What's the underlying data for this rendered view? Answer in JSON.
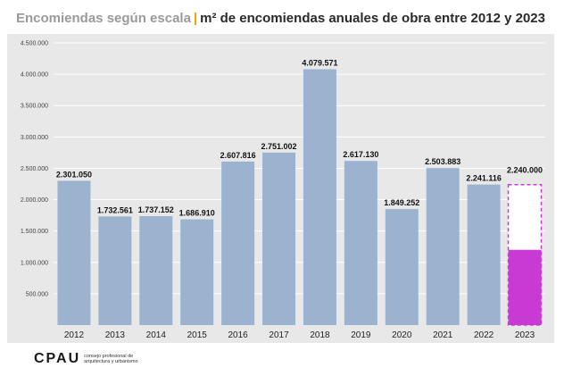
{
  "header": {
    "title_light": "Encomiendas según escala",
    "separator": "|",
    "title_dark": "m² de encomiendas anuales de obra entre 2012 y 2023"
  },
  "footer": {
    "logo_text": "CPAU",
    "org_line1": "consejo profesional de",
    "org_line2": "arquitectura y urbanismo"
  },
  "colors": {
    "bar": "#9bb3cf",
    "highlight": "#c93ad4",
    "plot_bg": "#e8e8e8",
    "grid": "#ffffff"
  },
  "chart_data": {
    "type": "bar",
    "title": "m² de encomiendas anuales de obra entre 2012 y 2023",
    "xlabel": "",
    "ylabel": "",
    "categories": [
      "2012",
      "2013",
      "2014",
      "2015",
      "2016",
      "2017",
      "2018",
      "2019",
      "2020",
      "2021",
      "2022",
      "2023"
    ],
    "values": [
      2301050,
      1732561,
      1737152,
      1686910,
      2607816,
      2751002,
      4079571,
      2617130,
      1849252,
      2503883,
      2241116,
      2240000
    ],
    "value_labels": [
      "2.301.050",
      "1.732.561",
      "1.737.152",
      "1.686.910",
      "2.607.816",
      "2.751.002",
      "4.079.571",
      "2.617.130",
      "1.849.252",
      "2.503.883",
      "2.241.116",
      "2.240.000"
    ],
    "partial_2023_actual": 1200000,
    "partial_note_style": "2023 shown as partial solid bar with dashed projected outline",
    "ylim": [
      0,
      4500000
    ],
    "yticks": [
      500000,
      1000000,
      1500000,
      2000000,
      2500000,
      3000000,
      3500000,
      4000000,
      4500000
    ],
    "ytick_labels": [
      "500.000",
      "1.000.000",
      "1.500.000",
      "2.000.000",
      "2.500.000",
      "3.000.000",
      "3.500.000",
      "4.000.000",
      "4.500.000"
    ],
    "grid": true
  }
}
